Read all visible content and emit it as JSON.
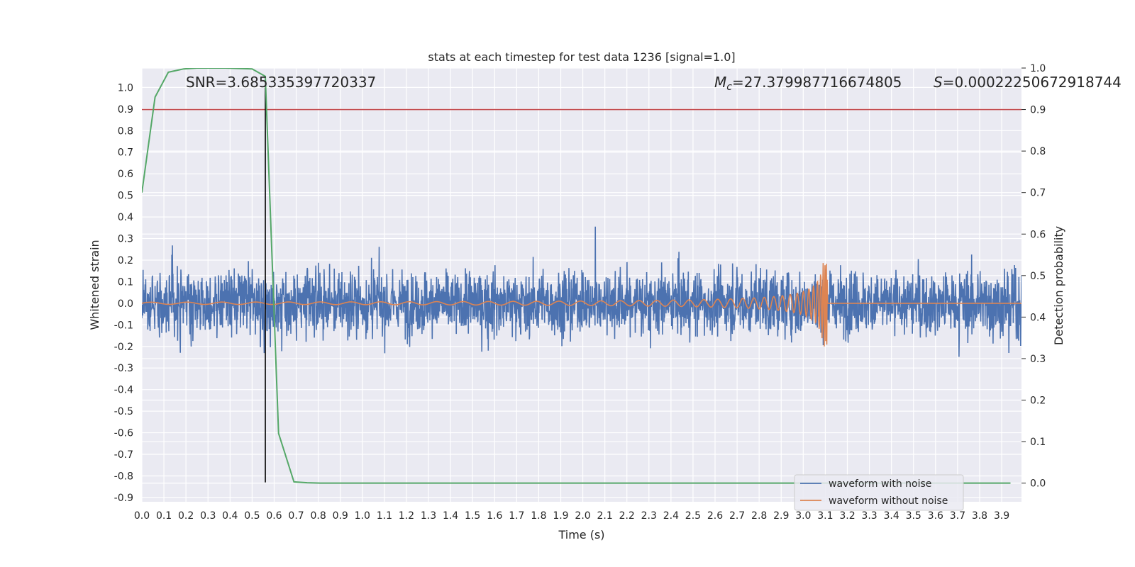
{
  "chart_data": {
    "type": "line",
    "title": "stats at each timestep for test data 1236 [signal=1.0]",
    "xlabel": "Time (s)",
    "ylabel": "Whitened strain",
    "ylabel_right": "Detection probability",
    "xlim": [
      0.0,
      3.99
    ],
    "ylim": [
      -0.92,
      1.09
    ],
    "ylim_right": [
      -0.045,
      1.0
    ],
    "x_ticks": [
      "0.0",
      "0.1",
      "0.2",
      "0.3",
      "0.4",
      "0.5",
      "0.6",
      "0.7",
      "0.8",
      "0.9",
      "1.0",
      "1.1",
      "1.2",
      "1.3",
      "1.4",
      "1.5",
      "1.6",
      "1.7",
      "1.8",
      "1.9",
      "2.0",
      "2.1",
      "2.2",
      "2.3",
      "2.4",
      "2.5",
      "2.6",
      "2.7",
      "2.8",
      "2.9",
      "3.0",
      "3.1",
      "3.2",
      "3.3",
      "3.4",
      "3.5",
      "3.6",
      "3.7",
      "3.8",
      "3.9"
    ],
    "y_ticks": [
      "1.0",
      "0.9",
      "0.8",
      "0.7",
      "0.6",
      "0.5",
      "0.4",
      "0.3",
      "0.2",
      "0.1",
      "0.0",
      "-0.1",
      "-0.2",
      "-0.3",
      "-0.4",
      "-0.5",
      "-0.6",
      "-0.7",
      "-0.8",
      "-0.9"
    ],
    "y_ticks_right": [
      "1.0",
      "0.9",
      "0.8",
      "0.7",
      "0.6",
      "0.5",
      "0.4",
      "0.3",
      "0.2",
      "0.1",
      "0.0"
    ],
    "annotations": {
      "snr": "SNR=3.685335397720337",
      "mc": "=27.379987716674805",
      "mc_symbol": "M",
      "mc_sub": "c",
      "s": "=0.00022250672918744",
      "s_symbol": "S"
    },
    "threshold_right": 0.9,
    "vertical_line_x": 0.56,
    "merger_time": 3.11,
    "noise_amplitude_typical": 0.3,
    "grid": true,
    "legend_position": "lower-right",
    "series": [
      {
        "name": "waveform with noise",
        "color": "#4c72b0"
      },
      {
        "name": "waveform without noise",
        "color": "#dd8452"
      },
      {
        "name": "detection probability",
        "color": "#55a868",
        "axis": "right",
        "x": [
          0.0,
          0.06,
          0.12,
          0.19,
          0.25,
          0.31,
          0.38,
          0.44,
          0.5,
          0.56,
          0.62,
          0.69,
          0.75,
          0.81,
          0.88,
          1.5,
          2.5,
          3.5,
          3.94
        ],
        "y": [
          0.7,
          0.93,
          0.99,
          0.998,
          1.0,
          1.0,
          1.0,
          0.999,
          0.998,
          0.98,
          0.12,
          0.003,
          0.001,
          0.0,
          0.0,
          0.0,
          0.0,
          0.0,
          0.0
        ]
      }
    ],
    "colors": {
      "background": "#eaeaf2",
      "grid": "#ffffff",
      "threshold": "#c44e52",
      "vline": "#000000"
    }
  }
}
